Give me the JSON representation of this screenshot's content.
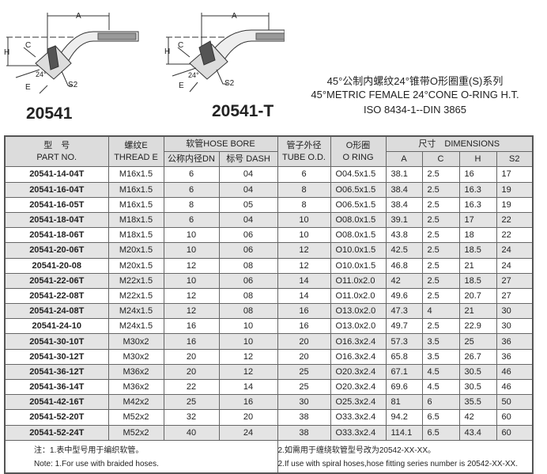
{
  "drawings": [
    {
      "model": "20541",
      "labels": [
        "A",
        "C",
        "H",
        "E",
        "24°",
        "S2"
      ]
    },
    {
      "model": "20541-T",
      "labels": [
        "A",
        "C",
        "H",
        "E",
        "24°",
        "S2"
      ]
    }
  ],
  "title": {
    "cn": "45°公制内螺纹24°锥带O形圈重(S)系列",
    "en": "45°METRIC FEMALE 24°CONE O-RING H.T.",
    "std": "ISO 8434-1--DIN 3865"
  },
  "table": {
    "headers": {
      "part_cn": "型　号",
      "part_en": "PART NO.",
      "thread_cn": "螺纹E",
      "thread_en": "THREAD E",
      "hose": "软管HOSE BORE",
      "dn": "公称内径DN",
      "dash": "标号 DASH",
      "tube_cn": "管子外径",
      "tube_en": "TUBE O.D.",
      "oring_cn": "O形圈",
      "oring_en": "O RING",
      "dim": "尺寸　DIMENSIONS",
      "a": "A",
      "c": "C",
      "h": "H",
      "s2": "S2"
    },
    "rows": [
      [
        "20541-14-04T",
        "M16x1.5",
        "6",
        "04",
        "6",
        "O04.5x1.5",
        "38.1",
        "2.5",
        "16",
        "17"
      ],
      [
        "20541-16-04T",
        "M16x1.5",
        "6",
        "04",
        "8",
        "O06.5x1.5",
        "38.4",
        "2.5",
        "16.3",
        "19"
      ],
      [
        "20541-16-05T",
        "M16x1.5",
        "8",
        "05",
        "8",
        "O06.5x1.5",
        "38.4",
        "2.5",
        "16.3",
        "19"
      ],
      [
        "20541-18-04T",
        "M18x1.5",
        "6",
        "04",
        "10",
        "O08.0x1.5",
        "39.1",
        "2.5",
        "17",
        "22"
      ],
      [
        "20541-18-06T",
        "M18x1.5",
        "10",
        "06",
        "10",
        "O08.0x1.5",
        "43.8",
        "2.5",
        "18",
        "22"
      ],
      [
        "20541-20-06T",
        "M20x1.5",
        "10",
        "06",
        "12",
        "O10.0x1.5",
        "42.5",
        "2.5",
        "18.5",
        "24"
      ],
      [
        "20541-20-08",
        "M20x1.5",
        "12",
        "08",
        "12",
        "O10.0x1.5",
        "46.8",
        "2.5",
        "21",
        "24"
      ],
      [
        "20541-22-06T",
        "M22x1.5",
        "10",
        "06",
        "14",
        "O11.0x2.0",
        "42",
        "2.5",
        "18.5",
        "27"
      ],
      [
        "20541-22-08T",
        "M22x1.5",
        "12",
        "08",
        "14",
        "O11.0x2.0",
        "49.6",
        "2.5",
        "20.7",
        "27"
      ],
      [
        "20541-24-08T",
        "M24x1.5",
        "12",
        "08",
        "16",
        "O13.0x2.0",
        "47.3",
        "4",
        "21",
        "30"
      ],
      [
        "20541-24-10",
        "M24x1.5",
        "16",
        "10",
        "16",
        "O13.0x2.0",
        "49.7",
        "2.5",
        "22.9",
        "30"
      ],
      [
        "20541-30-10T",
        "M30x2",
        "16",
        "10",
        "20",
        "O16.3x2.4",
        "57.3",
        "3.5",
        "25",
        "36"
      ],
      [
        "20541-30-12T",
        "M30x2",
        "20",
        "12",
        "20",
        "O16.3x2.4",
        "65.8",
        "3.5",
        "26.7",
        "36"
      ],
      [
        "20541-36-12T",
        "M36x2",
        "20",
        "12",
        "25",
        "O20.3x2.4",
        "67.1",
        "4.5",
        "30.5",
        "46"
      ],
      [
        "20541-36-14T",
        "M36x2",
        "22",
        "14",
        "25",
        "O20.3x2.4",
        "69.6",
        "4.5",
        "30.5",
        "46"
      ],
      [
        "20541-42-16T",
        "M42x2",
        "25",
        "16",
        "30",
        "O25.3x2.4",
        "81",
        "6",
        "35.5",
        "50"
      ],
      [
        "20541-52-20T",
        "M52x2",
        "32",
        "20",
        "38",
        "O33.3x2.4",
        "94.2",
        "6.5",
        "42",
        "60"
      ],
      [
        "20541-52-24T",
        "M52x2",
        "40",
        "24",
        "38",
        "O33.3x2.4",
        "114.1",
        "6.5",
        "43.4",
        "60"
      ]
    ],
    "notes": {
      "n1_cn": "注：1.表中型号用于编织软管。",
      "n1_en": "Note: 1.For use with braided hoses.",
      "n2_cn": "2.如需用于缠绕软管型号改为20542-XX-XX。",
      "n2_en": "2.If use with spiral hoses,hose fitting series number is  20542-XX-XX."
    }
  }
}
